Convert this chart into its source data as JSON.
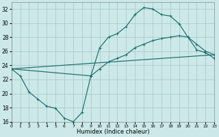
{
  "xlabel": "Humidex (Indice chaleur)",
  "xlim": [
    0,
    23
  ],
  "ylim": [
    16,
    33
  ],
  "yticks": [
    16,
    18,
    20,
    22,
    24,
    26,
    28,
    30,
    32
  ],
  "xticks": [
    0,
    1,
    2,
    3,
    4,
    5,
    6,
    7,
    8,
    9,
    10,
    11,
    12,
    13,
    14,
    15,
    16,
    17,
    18,
    19,
    20,
    21,
    22,
    23
  ],
  "bg_color": "#cce8e8",
  "grid_color": "#aacccc",
  "line_color": "#1a6b6b",
  "curve1_x": [
    0,
    1,
    2,
    3,
    4,
    5,
    6,
    7,
    8,
    9,
    10,
    11,
    12,
    13,
    14,
    15,
    16,
    17,
    18,
    19,
    20,
    21,
    22,
    23
  ],
  "curve1_y": [
    23.5,
    22.5,
    20.2,
    19.2,
    18.2,
    17.9,
    16.5,
    16.0,
    17.3,
    22.5,
    26.5,
    28.0,
    28.5,
    29.5,
    31.2,
    32.2,
    32.0,
    31.2,
    31.0,
    29.9,
    28.0,
    26.2,
    25.8,
    25.0
  ],
  "curve2_x": [
    0,
    9,
    10,
    11,
    12,
    13,
    14,
    15,
    16,
    17,
    18,
    19,
    20,
    21,
    22,
    23
  ],
  "curve2_y": [
    23.5,
    22.5,
    23.5,
    24.5,
    25.0,
    25.5,
    26.5,
    27.0,
    27.5,
    27.8,
    28.0,
    28.2,
    28.0,
    27.0,
    26.0,
    25.5
  ],
  "line3_x": [
    0,
    23
  ],
  "line3_y": [
    23.5,
    25.5
  ]
}
